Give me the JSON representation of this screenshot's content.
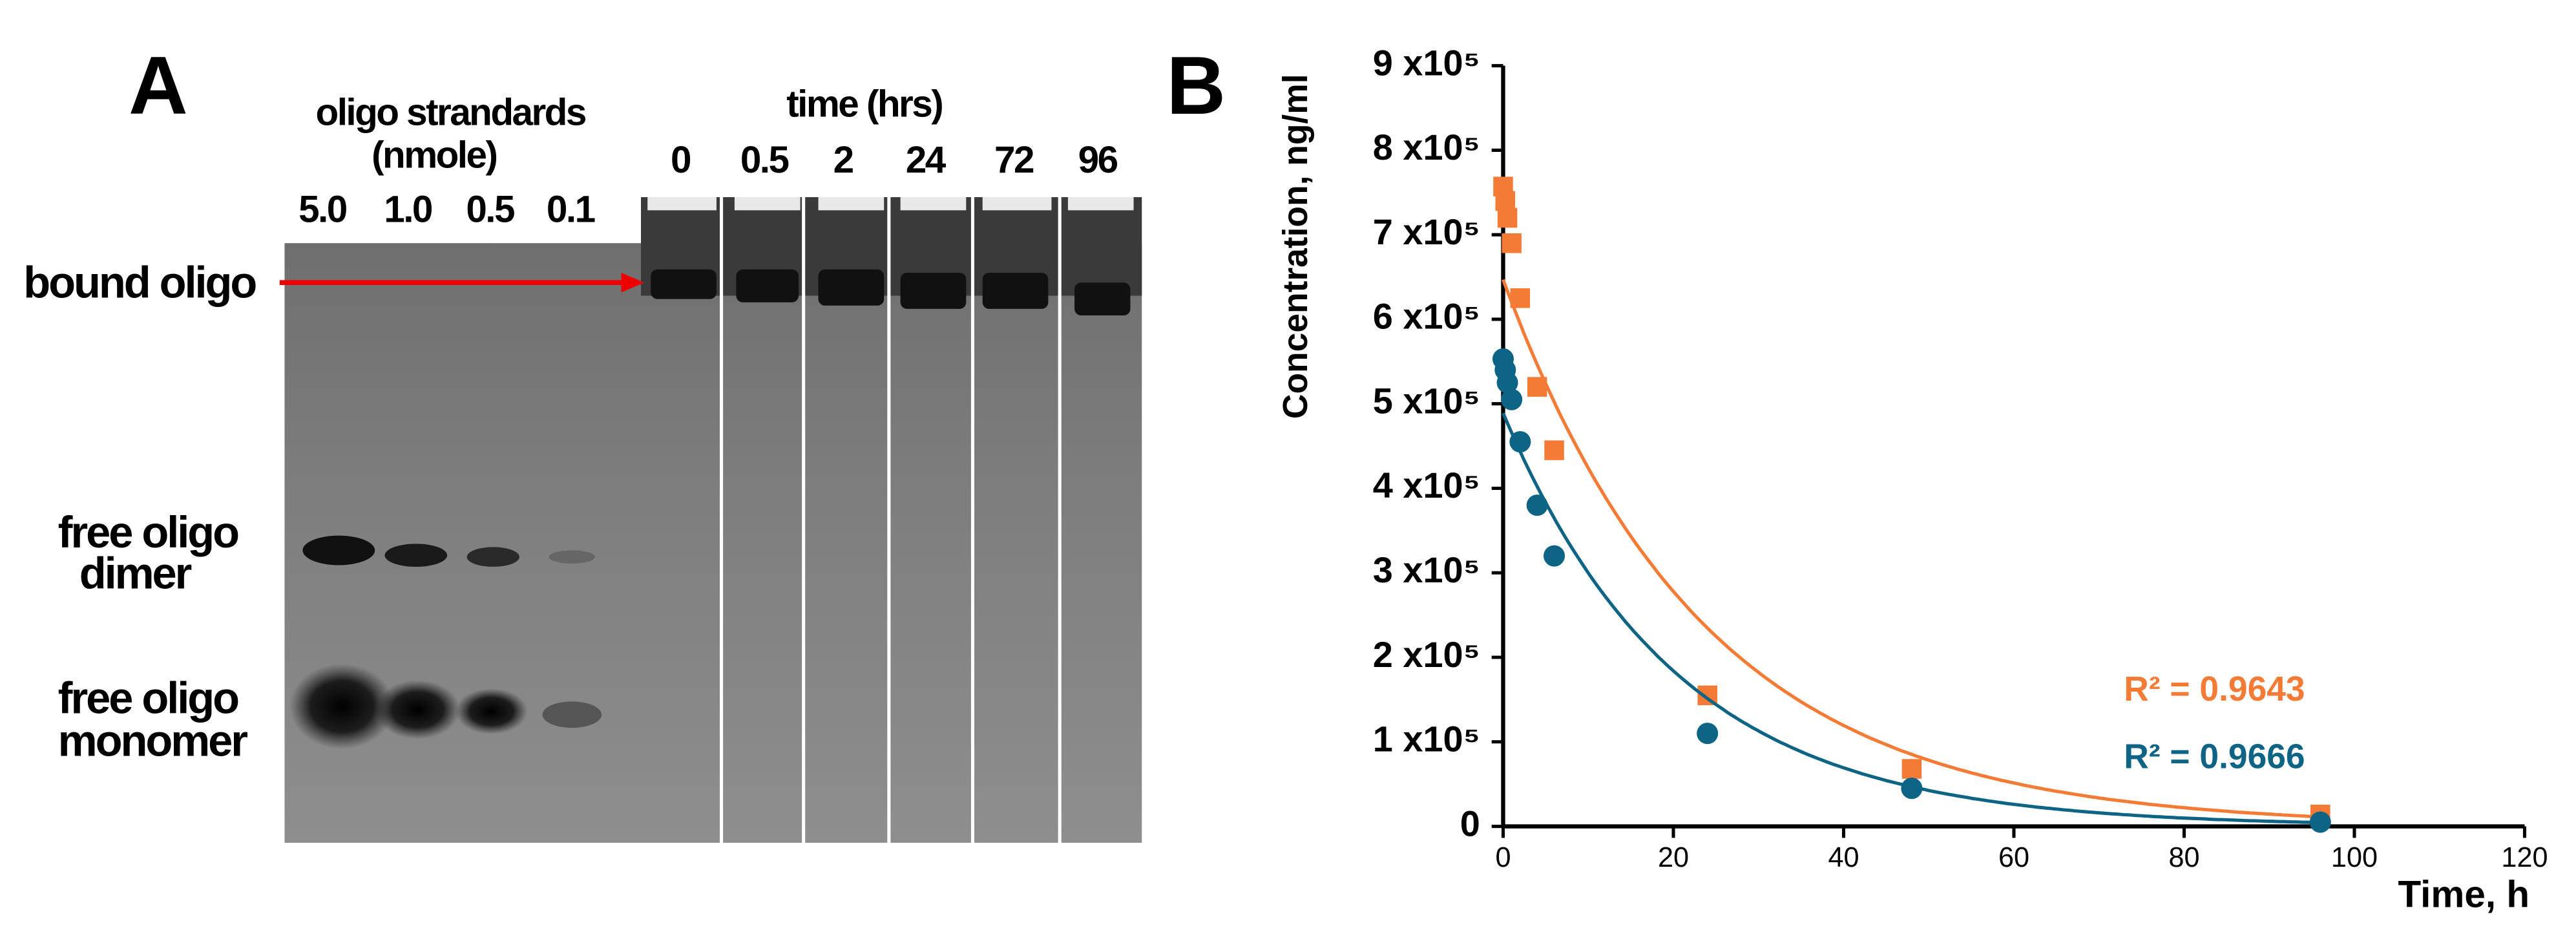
{
  "panel_a": {
    "label": "A",
    "standards_title": [
      "oligo strandards",
      "(nmole)"
    ],
    "standards_lanes": [
      "5.0",
      "1.0",
      "0.5",
      "0.1"
    ],
    "time_title": "time (hrs)",
    "time_lanes": [
      "0",
      "0.5",
      "2",
      "24",
      "72",
      "96"
    ],
    "bound": "bound oligo",
    "dimer": [
      "free oligo",
      "dimer"
    ],
    "monomer": [
      "free oligo",
      "monomer"
    ]
  },
  "chart_data": {
    "type": "scatter",
    "panel_label": "B",
    "x_label": "Time, h",
    "y_label": "Concentration, ng/ml",
    "xlim": [
      0,
      120
    ],
    "xticks": [
      0,
      20,
      40,
      60,
      80,
      100,
      120
    ],
    "ylim": [
      0,
      900000
    ],
    "yticks": [
      0,
      {
        "value": 100000,
        "label": "1 x10⁵"
      },
      {
        "value": 200000,
        "label": "2 x10⁵"
      },
      {
        "value": 300000,
        "label": "3 x10⁵"
      },
      {
        "value": 400000,
        "label": "4 x10⁵"
      },
      {
        "value": 500000,
        "label": "5 x10⁵"
      },
      {
        "value": 600000,
        "label": "6 x10⁵"
      },
      {
        "value": 700000,
        "label": "7 x10⁵"
      },
      {
        "value": 800000,
        "label": "8 x10⁵"
      },
      {
        "value": 900000,
        "label": "9 x10⁵"
      }
    ],
    "series": [
      {
        "color": "#f47b35",
        "marker": "square",
        "x": [
          0,
          0.25,
          0.5,
          1,
          2,
          4,
          6,
          24,
          48,
          96
        ],
        "values": [
          757000,
          740000,
          720000,
          690000,
          625000,
          520000,
          445000,
          155000,
          68000,
          14000
        ]
      },
      {
        "color": "#0e6485",
        "marker": "circle",
        "x": [
          0,
          0.25,
          0.5,
          1,
          2,
          4,
          6,
          24,
          48,
          96
        ],
        "values": [
          553000,
          540000,
          525000,
          505000,
          455000,
          380000,
          320000,
          110000,
          45000,
          5000
        ]
      }
    ],
    "annotations": [
      {
        "text": "R² = 0.9643",
        "color": "#f47b35"
      },
      {
        "text": "R² = 0.9666",
        "color": "#0e6485"
      }
    ]
  }
}
